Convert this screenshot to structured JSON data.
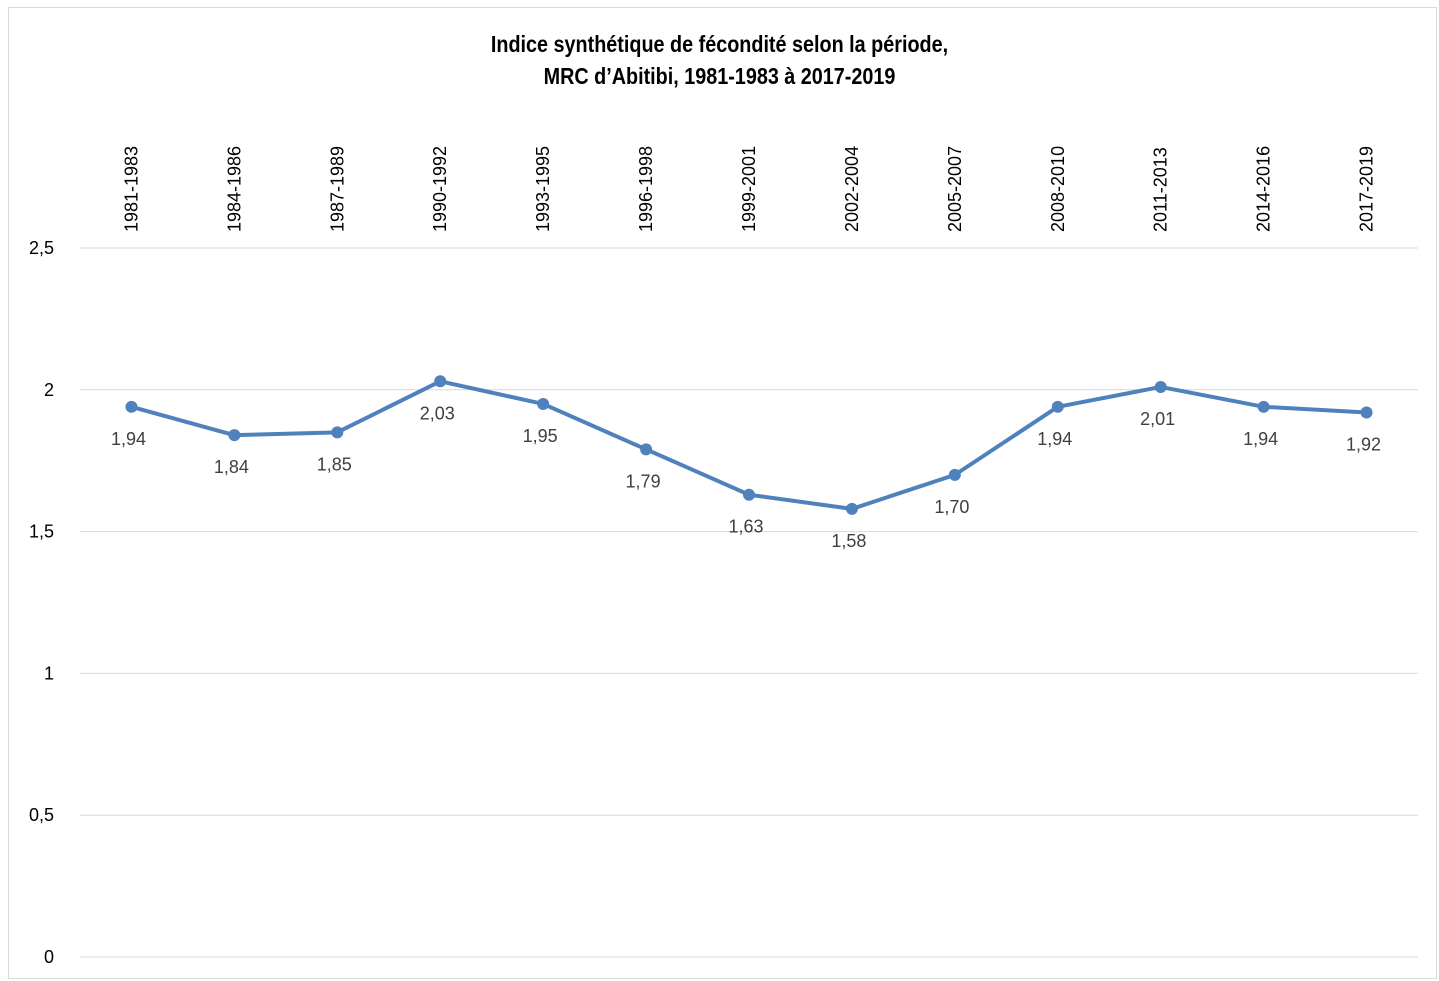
{
  "chart_data": {
    "type": "line",
    "title": "Indice synthétique de fécondité selon la période,",
    "subtitle": "MRC d’Abitibi, 1981-1983  à 2017-2019",
    "categories": [
      "1981-1983",
      "1984-1986",
      "1987-1989",
      "1990-1992",
      "1993-1995",
      "1996-1998",
      "1999-2001",
      "2002-2004",
      "2005-2007",
      "2008-2010",
      "2011-2013",
      "2014-2016",
      "2017-2019"
    ],
    "series": [
      {
        "values": [
          1.94,
          1.84,
          1.85,
          2.03,
          1.95,
          1.79,
          1.63,
          1.58,
          1.7,
          1.94,
          2.01,
          1.94,
          1.92
        ],
        "labels": [
          "1,94",
          "1,84",
          "1,85",
          "2,03",
          "1,95",
          "1,79",
          "1,63",
          "1,58",
          "1,70",
          "1,94",
          "2,01",
          "1,94",
          "1,92"
        ],
        "color": "#4f81bd"
      }
    ],
    "yticks": [
      "0",
      "0,5",
      "1",
      "1,5",
      "2",
      "2,5"
    ],
    "ylim": [
      0,
      2.5
    ],
    "grid": true,
    "xaxis_position": "top",
    "legend": "none"
  }
}
